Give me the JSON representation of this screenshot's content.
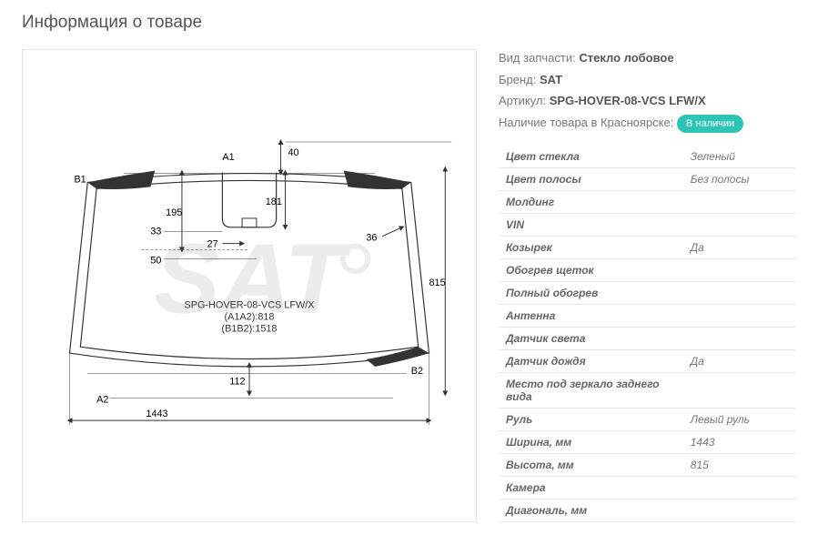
{
  "title": "Информация о товаре",
  "diagram": {
    "dims": {
      "A1": "A1",
      "A2": "A2",
      "B1": "B1",
      "B2": "B2",
      "d40": "40",
      "d195": "195",
      "d181": "181",
      "d27": "27",
      "d33": "33",
      "d50": "50",
      "d36": "36",
      "d815": "815",
      "d112": "112",
      "d1443": "1443"
    },
    "center_labels": [
      "SPG-HOVER-08-VCS LFW/X",
      "(A1A2):818",
      "(B1B2):1518"
    ],
    "watermark": "SAT",
    "colors": {
      "line": "#333",
      "watermark": "#e0e0e0",
      "fill": "#333"
    }
  },
  "info": {
    "part_type_label": "Вид запчасти:",
    "part_type": "Стекло лобовое",
    "brand_label": "Бренд:",
    "brand": "SAT",
    "article_label": "Артикул:",
    "article": "SPG-HOVER-08-VCS LFW/X",
    "availability_label": "Наличие товара в Красноярске:",
    "availability_badge": "В наличии"
  },
  "specs": [
    {
      "label": "Цвет стекла",
      "value": "Зеленый"
    },
    {
      "label": "Цвет полосы",
      "value": "Без полосы"
    },
    {
      "label": "Молдинг",
      "value": ""
    },
    {
      "label": "VIN",
      "value": ""
    },
    {
      "label": "Козырек",
      "value": "Да"
    },
    {
      "label": "Обогрев щеток",
      "value": ""
    },
    {
      "label": "Полный обогрев",
      "value": ""
    },
    {
      "label": "Антенна",
      "value": ""
    },
    {
      "label": "Датчик света",
      "value": ""
    },
    {
      "label": "Датчик дождя",
      "value": "Да"
    },
    {
      "label": "Место под зеркало заднего вида",
      "value": ""
    },
    {
      "label": "Руль",
      "value": "Левый руль"
    },
    {
      "label": "Ширина, мм",
      "value": "1443"
    },
    {
      "label": "Высота, мм",
      "value": "815"
    },
    {
      "label": "Камера",
      "value": ""
    },
    {
      "label": "Диагональ, мм",
      "value": ""
    }
  ]
}
